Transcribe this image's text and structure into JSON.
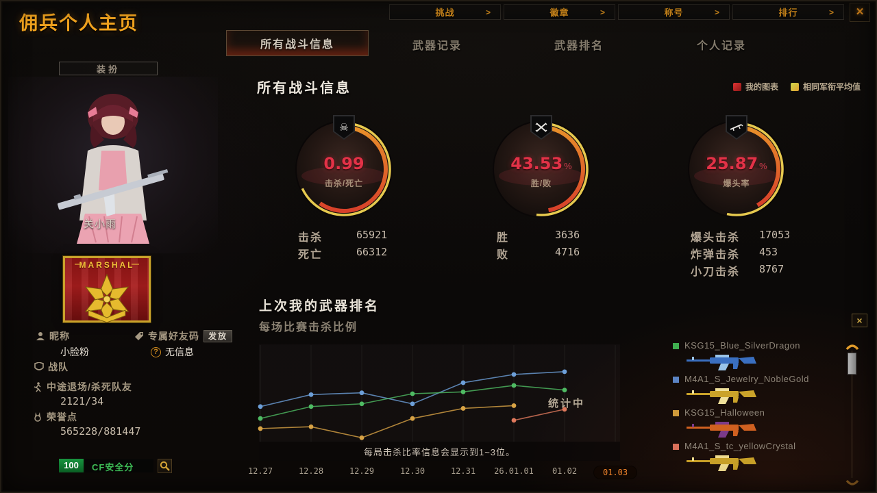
{
  "icons": {
    "close": "×",
    "arrow": ">",
    "question": "?",
    "dash": "—"
  },
  "window": {
    "title": "佣兵个人主页"
  },
  "top_nav": {
    "items": [
      {
        "name": "challenge",
        "label": "挑战"
      },
      {
        "name": "badge",
        "label": "徽章"
      },
      {
        "name": "title",
        "label": "称号"
      },
      {
        "name": "ranking",
        "label": "排行"
      }
    ]
  },
  "tabs": {
    "items": [
      {
        "name": "all-battle-info",
        "label": "所有战斗信息",
        "active": true
      },
      {
        "name": "weapon-records",
        "label": "武器记录",
        "active": false
      },
      {
        "name": "weapon-ranking",
        "label": "武器排名",
        "active": false
      },
      {
        "name": "personal-records",
        "label": "个人记录",
        "active": false
      }
    ]
  },
  "sidebar": {
    "dress_button": "装扮",
    "character_name": "关小雨",
    "rank_badge_title": "MARSHAL",
    "fields": {
      "nickname_label": "昵称",
      "nickname_value": "小脸粉",
      "friend_code_label": "专属好友码",
      "friend_code_button": "发放",
      "friend_code_value": "无信息",
      "clan_label": "战队",
      "quit_label": "中途退场/杀死队友",
      "quit_value": "2121/34",
      "honor_label": "荣誉点",
      "honor_value": "565228/881447",
      "security_score": "100",
      "security_label": "CF安全分"
    }
  },
  "main": {
    "section_title": "所有战斗信息",
    "legend": [
      {
        "label": "我的图表",
        "color_a": "#e03434",
        "color_b": "#8c1616"
      },
      {
        "label": "相同军衔平均值",
        "color_a": "#cfd84a",
        "color_b": "#e0a030"
      }
    ],
    "gauges": [
      {
        "icon": "skull-icon",
        "glyph": "☠",
        "value": "0.99",
        "unit": "",
        "label": "击杀/死亡",
        "my_deg": 215,
        "avg_deg": 245
      },
      {
        "icon": "crossed-rifles-icon",
        "glyph": "",
        "value": "43.53",
        "unit": "%",
        "label": "胜/败",
        "my_deg": 170,
        "avg_deg": 186
      },
      {
        "icon": "sniper-rifle-icon",
        "glyph": "",
        "value": "25.87",
        "unit": "%",
        "label": "爆头率",
        "my_deg": 150,
        "avg_deg": 192
      }
    ],
    "stats": [
      {
        "rows": [
          [
            "击杀",
            "65921"
          ],
          [
            "死亡",
            "66312"
          ]
        ]
      },
      {
        "rows": [
          [
            "胜",
            "3636"
          ],
          [
            "败",
            "4716"
          ]
        ]
      },
      {
        "rows": [
          [
            "爆头击杀",
            "17053"
          ],
          [
            "炸弹击杀",
            "453"
          ],
          [
            "小刀击杀",
            "8767"
          ]
        ]
      }
    ],
    "weapon_section": {
      "title": "上次我的武器排名",
      "subtitle": "每场比赛击杀比例",
      "status": "统计中",
      "notice": "每局击杀比率信息会显示到1~3位。"
    }
  },
  "chart_data": {
    "type": "line",
    "title": "每场比赛击杀比例",
    "x_labels": [
      "12.27",
      "12.28",
      "12.29",
      "12.30",
      "12.31",
      "26.01.01",
      "01.02",
      "01.03"
    ],
    "highlighted_x": "01.03",
    "grid": "vertical-only",
    "legend_position": "right-list",
    "ylim": [
      0,
      100
    ],
    "y_axis_shown": false,
    "note": "values are relative heights in percent of plot area; last date still computing (统计中)",
    "series": [
      {
        "name": "M4A1_S_Jewelry_NobleGold",
        "color": "#6d9fd8",
        "values": [
          36,
          49,
          51,
          39,
          62,
          71,
          74,
          null
        ]
      },
      {
        "name": "KSG15_Blue_SilverDragon",
        "color": "#4fbb63",
        "values": [
          23,
          36,
          39,
          50,
          52,
          59,
          54,
          null
        ]
      },
      {
        "name": "KSG15_Halloween",
        "color": "#d8a345",
        "values": [
          12,
          14,
          2,
          23,
          34,
          37,
          null,
          null
        ]
      },
      {
        "name": "M4A1_S_tc_yellowCrystal",
        "color": "#e0795c",
        "values": [
          null,
          null,
          null,
          null,
          null,
          21,
          33,
          null
        ]
      }
    ]
  },
  "weapon_list": [
    {
      "name": "KSG15_Blue_SilverDragon",
      "swatch": "#3fae4f",
      "gun_primary": "#3a6fc0",
      "gun_secondary": "#9ac4e8"
    },
    {
      "name": "M4A1_S_Jewelry_NobleGold",
      "swatch": "#5b84c4",
      "gun_primary": "#caa32a",
      "gun_secondary": "#efe09a"
    },
    {
      "name": "KSG15_Halloween",
      "swatch": "#cf9a3a",
      "gun_primary": "#d06020",
      "gun_secondary": "#7a3a8a"
    },
    {
      "name": "M4A1_S_tc_yellowCrystal",
      "swatch": "#d9705a",
      "gun_primary": "#c8a028",
      "gun_secondary": "#f0dc8e"
    }
  ]
}
